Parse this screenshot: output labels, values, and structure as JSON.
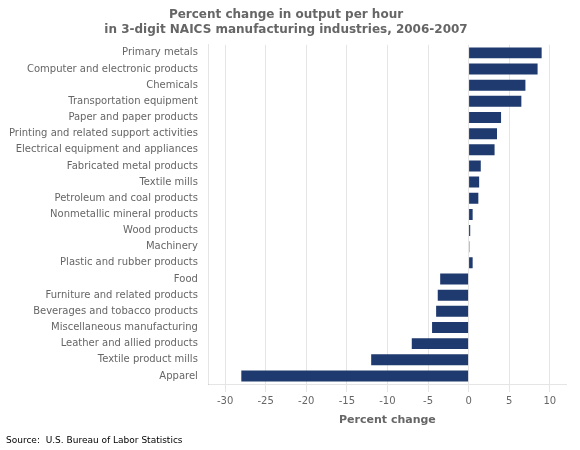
{
  "chart_data": {
    "type": "bar",
    "title": "Percent change in output per hour\nin 3-digit NAICS manufacturing industries, 2006-2007",
    "xlabel": "Percent change",
    "annotation": "Source:  U.S. Bureau of Labor Statistics",
    "orientation": "horizontal",
    "categories": [
      "Primary metals",
      "Computer and electronic products",
      "Chemicals",
      "Transportation equipment",
      "Paper and paper products",
      "Printing and related support activities",
      "Electrical equipment and appliances",
      "Fabricated metal products",
      "Textile mills",
      "Petroleum and coal products",
      "Nonmetallic mineral products",
      "Wood products",
      "Machinery",
      "Plastic and rubber products",
      "Food",
      "Furniture and related products",
      "Beverages and tobacco products",
      "Miscellaneous manufacturing",
      "Leather and allied products",
      "Textile product mills",
      "Apparel"
    ],
    "values": [
      9.0,
      8.5,
      7.0,
      6.5,
      4.0,
      3.5,
      3.2,
      1.5,
      1.3,
      1.2,
      0.5,
      0.2,
      0.1,
      0.5,
      -3.5,
      -3.8,
      -4.0,
      -4.5,
      -7.0,
      -12.0,
      -28.0
    ],
    "color": "#1F3A6E",
    "xlim": [
      -32,
      12
    ],
    "xticks": [
      -30,
      -25,
      -20,
      -15,
      -10,
      -5,
      0,
      5,
      10
    ],
    "grid": true
  }
}
